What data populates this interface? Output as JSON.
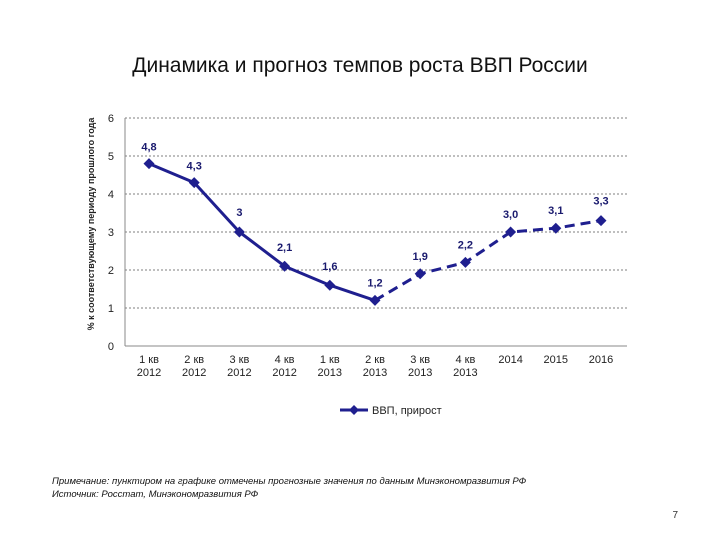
{
  "title": "Динамика и прогноз темпов роста ВВП России",
  "note_line1": "Примечание: пунктиром на графике отмечены прогнозные значения по данным Минэкономразвития РФ",
  "note_line2": "Источник: Росстат, Минэкономразвития РФ",
  "page_number": "7",
  "chart_data": {
    "type": "line",
    "title": "Динамика и прогноз темпов роста ВВП России",
    "ylabel": "% к соответствующему периоду прошлого года",
    "xlabel": "",
    "ylim": [
      0,
      6
    ],
    "yticks": [
      "0",
      "1",
      "2",
      "3",
      "4",
      "5",
      "6"
    ],
    "grid": "horizontal dashed",
    "categories": [
      [
        "1 кв",
        "2012"
      ],
      [
        "2 кв",
        "2012"
      ],
      [
        "3 кв",
        "2012"
      ],
      [
        "4 кв",
        "2012"
      ],
      [
        "1 кв",
        "2013"
      ],
      [
        "2 кв",
        "2013"
      ],
      [
        "3 кв",
        "2013"
      ],
      [
        "4 кв",
        "2013"
      ],
      [
        "2014",
        ""
      ],
      [
        "2015",
        ""
      ],
      [
        "2016",
        ""
      ]
    ],
    "series": [
      {
        "name": "ВВП, прирост",
        "color": "#1f1f8f",
        "values": [
          4.8,
          4.3,
          3.0,
          2.1,
          1.6,
          1.2,
          1.9,
          2.2,
          3.0,
          3.1,
          3.3
        ],
        "labels": [
          "4,8",
          "4,3",
          "3",
          "2,1",
          "1,6",
          "1,2",
          "1,9",
          "2,2",
          "3,0",
          "3,1",
          "3,3"
        ],
        "actual_through_index": 5
      }
    ],
    "legend": "bottom-center"
  }
}
